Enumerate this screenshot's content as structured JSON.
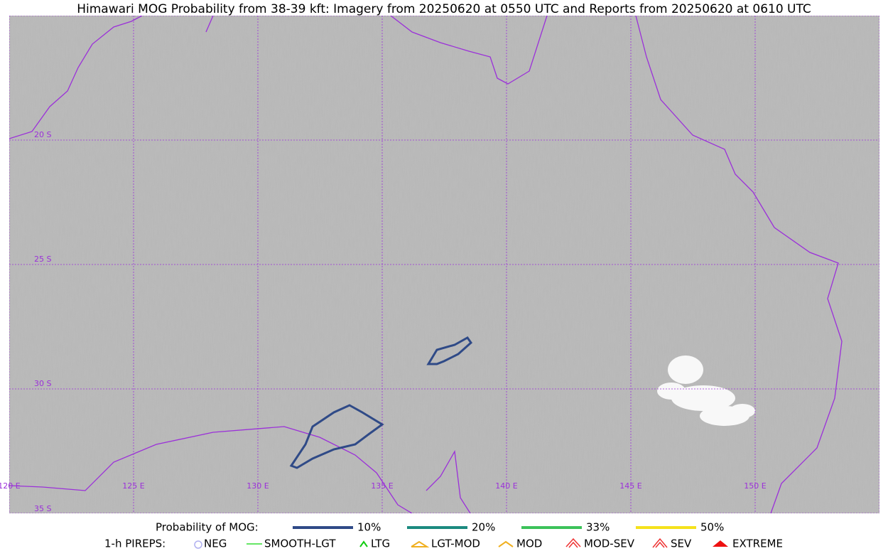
{
  "title": "Himawari MOG Probability from 38-39 kft: Imagery from 20250620 at 0550 UTC and Reports from 20250620 at 0610 UTC",
  "lat_labels": [
    "20 S",
    "25 S",
    "30 S",
    "35 S"
  ],
  "lon_labels": [
    "120 E",
    "125 E",
    "130 E",
    "135 E",
    "140 E",
    "145 E",
    "150 E"
  ],
  "legend": {
    "mog_title": "Probability of MOG:",
    "mog_items": [
      {
        "label": "10%",
        "color": "#2f4a87"
      },
      {
        "label": "20%",
        "color": "#1b8a80"
      },
      {
        "label": "33%",
        "color": "#3cc25a"
      },
      {
        "label": "50%",
        "color": "#f5e21b"
      }
    ],
    "pirep_title": "1-h PIREPS:",
    "pirep_items": [
      {
        "label": "NEG",
        "color": "#b0b0f0"
      },
      {
        "label": "SMOOTH-LGT",
        "color": "#33dd33"
      },
      {
        "label": "LTG",
        "color": "#11cc11"
      },
      {
        "label": "LGT-MOD",
        "color": "#f0b020"
      },
      {
        "label": "MOD",
        "color": "#f0b020"
      },
      {
        "label": "MOD-SEV",
        "color": "#ee3333"
      },
      {
        "label": "SEV",
        "color": "#ee3333"
      },
      {
        "label": "EXTREME",
        "color": "#ee1111"
      }
    ]
  }
}
